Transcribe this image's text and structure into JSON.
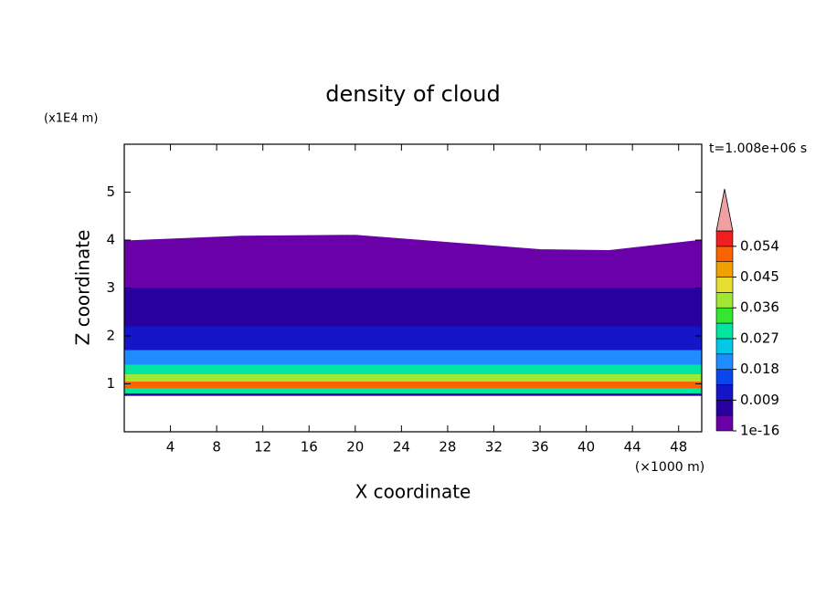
{
  "chart_data": {
    "type": "contour",
    "title": "density of cloud",
    "xlabel": "X coordinate",
    "ylabel": "Z coordinate",
    "x_unit_label": "(×1000 m)",
    "y_unit_label": "(x1E4 m)",
    "time_label": "t=1.008e+06 s",
    "xlim": [
      0,
      50
    ],
    "ylim": [
      0,
      6
    ],
    "xticks": [
      4,
      8,
      12,
      16,
      20,
      24,
      28,
      32,
      36,
      40,
      44,
      48
    ],
    "yticks": [
      1,
      2,
      3,
      4,
      5
    ],
    "colorbar": {
      "levels": [
        1e-16,
        0.0045,
        0.009,
        0.0135,
        0.018,
        0.0225,
        0.027,
        0.0315,
        0.036,
        0.0405,
        0.045,
        0.0495,
        0.054,
        0.0585
      ],
      "colors": [
        "#6a00a8",
        "#2800a0",
        "#1414c8",
        "#0a46f0",
        "#1e8cff",
        "#00c8e6",
        "#00e6a0",
        "#32e632",
        "#a0e632",
        "#e6dc32",
        "#f0a000",
        "#fa6400",
        "#f01e1e"
      ],
      "extend_color": "#f0a0a0",
      "ticks": [
        1e-16,
        0.009,
        0.018,
        0.027,
        0.036,
        0.045,
        0.054
      ]
    },
    "field": {
      "z": [
        0.75,
        0.8,
        0.9,
        1.05,
        1.2,
        1.4,
        1.7,
        2.2,
        3.0,
        4.2
      ],
      "values": [
        0.005,
        0.027,
        0.05,
        0.036,
        0.027,
        0.018,
        0.009,
        0.0045,
        1e-16
      ]
    },
    "cloud_top": {
      "x": [
        0,
        10,
        20,
        28,
        36,
        42,
        50
      ],
      "z": [
        3.98,
        4.08,
        4.1,
        3.95,
        3.8,
        3.78,
        4.0
      ]
    }
  }
}
